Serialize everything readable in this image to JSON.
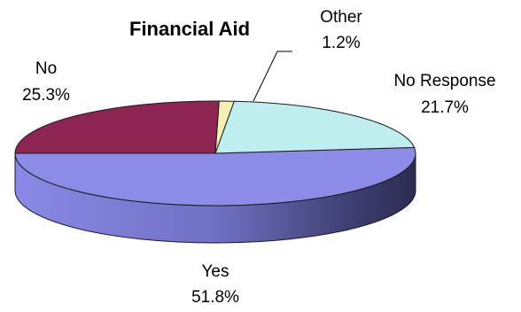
{
  "chart_data": {
    "type": "pie",
    "title": "Financial Aid",
    "slices": [
      {
        "label": "Yes",
        "value": 51.8,
        "value_text": "51.8%",
        "color": "#8c8ce8"
      },
      {
        "label": "No Response",
        "value": 21.7,
        "value_text": "21.7%",
        "color": "#bfeeee"
      },
      {
        "label": "Other",
        "value": 1.2,
        "value_text": "1.2%",
        "color": "#f4efb4"
      },
      {
        "label": "No",
        "value": 25.3,
        "value_text": "25.3%",
        "color": "#8e2452"
      }
    ]
  }
}
